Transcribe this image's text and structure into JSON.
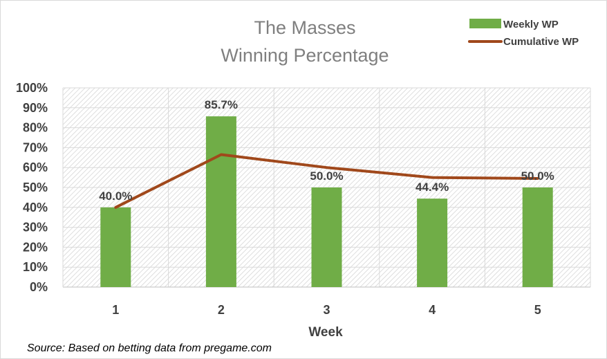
{
  "chart_data": {
    "type": "bar",
    "title_lines": [
      "The Masses",
      "Winning Percentage"
    ],
    "categories": [
      "1",
      "2",
      "3",
      "4",
      "5"
    ],
    "xlabel": "Week",
    "ylabel": "",
    "ylim": [
      0,
      100
    ],
    "yticks": [
      "0%",
      "10%",
      "20%",
      "30%",
      "40%",
      "50%",
      "60%",
      "70%",
      "80%",
      "90%",
      "100%"
    ],
    "series": [
      {
        "name": "Weekly WP",
        "type": "bar",
        "color": "#70ad47",
        "values": [
          40.0,
          85.7,
          50.0,
          44.4,
          50.0
        ],
        "labels": [
          "40.0%",
          "85.7%",
          "50.0%",
          "44.4%",
          "50.0%"
        ]
      },
      {
        "name": "Cumulative WP",
        "type": "line",
        "color": "#a0481b",
        "values": [
          40.0,
          66.5,
          60.0,
          55.0,
          54.5
        ]
      }
    ],
    "grid": true,
    "legend_position": "top-right",
    "source": "Source: Based on betting data from pregame.com"
  }
}
